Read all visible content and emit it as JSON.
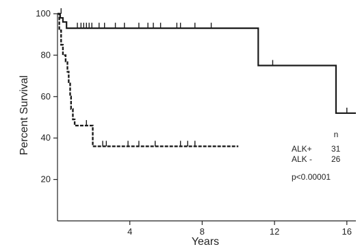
{
  "chart_data": {
    "type": "line",
    "subtype": "kaplan-meier",
    "title": "",
    "xlabel": "Years",
    "ylabel": "Percent Survival",
    "xlim": [
      0,
      16.5
    ],
    "ylim": [
      0,
      100
    ],
    "x_ticks": [
      4,
      8,
      12,
      16
    ],
    "y_ticks": [
      20,
      40,
      60,
      80,
      100
    ],
    "grid": false,
    "legend": {
      "header": "n",
      "entries": [
        {
          "label": "ALK+",
          "n": "31"
        },
        {
          "label": "ALK -",
          "n": "26"
        }
      ],
      "placement": "right"
    },
    "annotation": "p<0.00001",
    "series": [
      {
        "name": "ALK+",
        "style": "solid",
        "steps": [
          [
            0,
            100
          ],
          [
            0.15,
            98
          ],
          [
            0.3,
            96
          ],
          [
            0.5,
            93
          ],
          [
            11.1,
            93
          ],
          [
            11.1,
            75
          ],
          [
            15.4,
            75
          ],
          [
            15.4,
            52
          ],
          [
            16.5,
            52
          ]
        ],
        "censored": [
          [
            0.2,
            100
          ],
          [
            1.1,
            93
          ],
          [
            1.3,
            93
          ],
          [
            1.45,
            93
          ],
          [
            1.6,
            93
          ],
          [
            1.75,
            93
          ],
          [
            1.9,
            93
          ],
          [
            2.3,
            93
          ],
          [
            2.6,
            93
          ],
          [
            3.2,
            93
          ],
          [
            3.7,
            93
          ],
          [
            4.5,
            93
          ],
          [
            5.0,
            93
          ],
          [
            5.3,
            93
          ],
          [
            5.7,
            93
          ],
          [
            6.6,
            93
          ],
          [
            6.8,
            93
          ],
          [
            7.6,
            93
          ],
          [
            8.5,
            93
          ],
          [
            11.9,
            75
          ],
          [
            16.0,
            52
          ]
        ]
      },
      {
        "name": "ALK -",
        "style": "dashed",
        "steps": [
          [
            0,
            100
          ],
          [
            0.1,
            92
          ],
          [
            0.2,
            85
          ],
          [
            0.3,
            80
          ],
          [
            0.45,
            77
          ],
          [
            0.55,
            72
          ],
          [
            0.62,
            67
          ],
          [
            0.7,
            60
          ],
          [
            0.75,
            54
          ],
          [
            0.85,
            49
          ],
          [
            0.95,
            46
          ],
          [
            1.95,
            46
          ],
          [
            1.95,
            36
          ],
          [
            10.0,
            36
          ]
        ],
        "censored": [
          [
            1.6,
            46
          ],
          [
            2.5,
            36
          ],
          [
            2.7,
            36
          ],
          [
            3.9,
            36
          ],
          [
            4.5,
            36
          ],
          [
            5.4,
            36
          ],
          [
            6.8,
            36
          ],
          [
            7.2,
            36
          ],
          [
            7.6,
            36
          ]
        ]
      }
    ]
  }
}
